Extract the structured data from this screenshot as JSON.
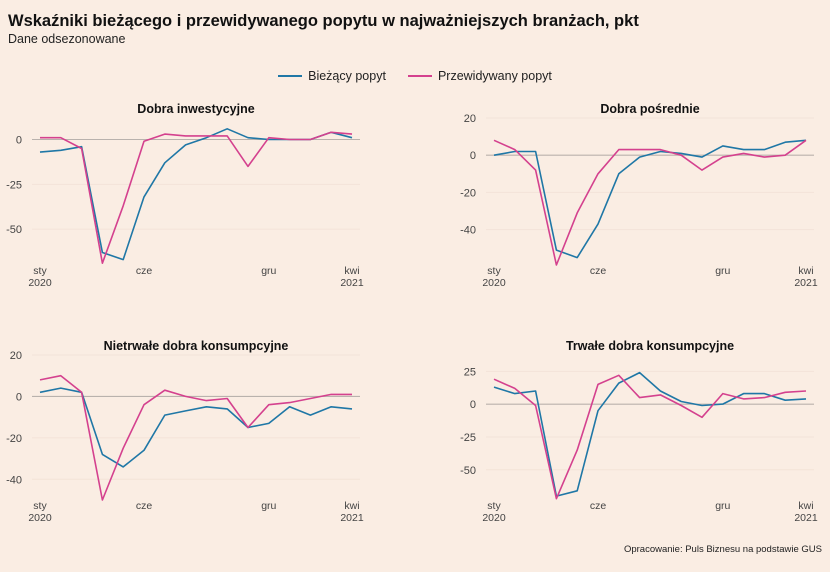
{
  "title": "Wskaźniki bieżącego i przewidywanego popytu w najważniejszych branżach, pkt",
  "subtitle": "Dane odsezonowane",
  "caption": "Opracowanie: Puls Biznesu na podstawie GUS",
  "colors": {
    "series_current": "#1f77a6",
    "series_expected": "#d4418e",
    "zero_line": "#b9b2ad",
    "grid": "#f3e3d8"
  },
  "legend": [
    {
      "label": "Bieżący popyt",
      "color": "#1f77a6"
    },
    {
      "label": "Przewidywany popyt",
      "color": "#d4418e"
    }
  ],
  "chart_data": [
    {
      "type": "line",
      "title": "Dobra inwestycyjne",
      "x": [
        "2020-01",
        "2020-02",
        "2020-03",
        "2020-04",
        "2020-05",
        "2020-06",
        "2020-07",
        "2020-08",
        "2020-09",
        "2020-10",
        "2020-11",
        "2020-12",
        "2021-01",
        "2021-02",
        "2021-03",
        "2021-04"
      ],
      "x_ticks": [
        {
          "label": "sty\n2020",
          "x": "2020-01"
        },
        {
          "label": "cze",
          "x": "2020-06"
        },
        {
          "label": "gru",
          "x": "2020-12"
        },
        {
          "label": "kwi\n2021",
          "x": "2021-04"
        }
      ],
      "yticks": [
        0,
        -25,
        -50
      ],
      "ylim": [
        -70,
        12
      ],
      "series": [
        {
          "name": "Bieżący popyt",
          "values": [
            -7,
            -6,
            -4,
            -63,
            -67,
            -32,
            -13,
            -3,
            1,
            6,
            1,
            0,
            0,
            0,
            4,
            1
          ]
        },
        {
          "name": "Przewidywany popyt",
          "values": [
            1,
            1,
            -5,
            -69,
            -37,
            -1,
            3,
            2,
            2,
            2,
            -15,
            1,
            0,
            0,
            4,
            3
          ]
        }
      ]
    },
    {
      "type": "line",
      "title": "Dobra pośrednie",
      "x": [
        "2020-01",
        "2020-02",
        "2020-03",
        "2020-04",
        "2020-05",
        "2020-06",
        "2020-07",
        "2020-08",
        "2020-09",
        "2020-10",
        "2020-11",
        "2020-12",
        "2021-01",
        "2021-02",
        "2021-03",
        "2021-04"
      ],
      "x_ticks": [
        {
          "label": "sty\n2020",
          "x": "2020-01"
        },
        {
          "label": "cze",
          "x": "2020-06"
        },
        {
          "label": "gru",
          "x": "2020-12"
        },
        {
          "label": "kwi\n2021",
          "x": "2021-04"
        }
      ],
      "yticks": [
        20,
        0,
        -20,
        -40
      ],
      "ylim": [
        -59,
        20
      ],
      "series": [
        {
          "name": "Bieżący popyt",
          "values": [
            0,
            2,
            2,
            -51,
            -55,
            -37,
            -10,
            -1,
            2,
            1,
            -1,
            5,
            3,
            3,
            7,
            8
          ]
        },
        {
          "name": "Przewidywany popyt",
          "values": [
            8,
            3,
            -8,
            -59,
            -31,
            -10,
            3,
            3,
            3,
            0,
            -8,
            -1,
            1,
            -1,
            0,
            8
          ]
        }
      ]
    },
    {
      "type": "line",
      "title": "Nietrwałe dobra konsumpcyjne",
      "x": [
        "2020-01",
        "2020-02",
        "2020-03",
        "2020-04",
        "2020-05",
        "2020-06",
        "2020-07",
        "2020-08",
        "2020-09",
        "2020-10",
        "2020-11",
        "2020-12",
        "2021-01",
        "2021-02",
        "2021-03",
        "2021-04"
      ],
      "x_ticks": [
        {
          "label": "sty\n2020",
          "x": "2020-01"
        },
        {
          "label": "cze",
          "x": "2020-06"
        },
        {
          "label": "gru",
          "x": "2020-12"
        },
        {
          "label": "kwi\n2021",
          "x": "2021-04"
        }
      ],
      "yticks": [
        20,
        0,
        -20,
        -40
      ],
      "ylim": [
        -50,
        20
      ],
      "series": [
        {
          "name": "Bieżący popyt",
          "values": [
            2,
            4,
            2,
            -28,
            -34,
            -26,
            -9,
            -7,
            -5,
            -6,
            -15,
            -13,
            -5,
            -9,
            -5,
            -6
          ]
        },
        {
          "name": "Przewidywany popyt",
          "values": [
            8,
            10,
            2,
            -50,
            -25,
            -4,
            3,
            0,
            -2,
            -1,
            -15,
            -4,
            -3,
            -1,
            1,
            1
          ]
        }
      ]
    },
    {
      "type": "line",
      "title": "Trwałe dobra konsumpcyjne",
      "x": [
        "2020-01",
        "2020-02",
        "2020-03",
        "2020-04",
        "2020-05",
        "2020-06",
        "2020-07",
        "2020-08",
        "2020-09",
        "2020-10",
        "2020-11",
        "2020-12",
        "2021-01",
        "2021-02",
        "2021-03",
        "2021-04"
      ],
      "x_ticks": [
        {
          "label": "sty\n2020",
          "x": "2020-01"
        },
        {
          "label": "cze",
          "x": "2020-06"
        },
        {
          "label": "gru",
          "x": "2020-12"
        },
        {
          "label": "kwi\n2021",
          "x": "2021-04"
        }
      ],
      "yticks": [
        25,
        0,
        -25,
        -50
      ],
      "ylim": [
        -73,
        26
      ],
      "series": [
        {
          "name": "Bieżący popyt",
          "values": [
            13,
            8,
            10,
            -70,
            -66,
            -5,
            16,
            24,
            10,
            2,
            -1,
            0,
            8,
            8,
            3,
            4
          ]
        },
        {
          "name": "Przewidywany popyt",
          "values": [
            19,
            12,
            -1,
            -72,
            -35,
            15,
            22,
            5,
            7,
            -1,
            -10,
            8,
            4,
            5,
            9,
            10
          ]
        }
      ]
    }
  ]
}
